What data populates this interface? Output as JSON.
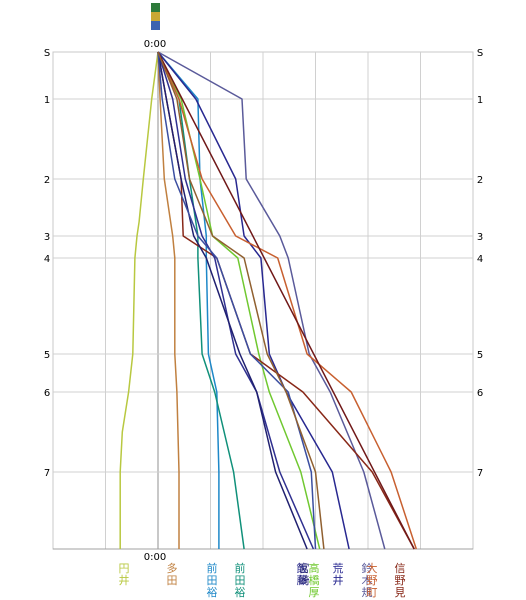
{
  "chart_data": {
    "type": "line",
    "title": "",
    "xlabel": "",
    "ylabel": "",
    "time_label_top": "0:00",
    "time_label_bottom": "0:00",
    "y_ticks": [
      "S",
      "1",
      "2",
      "3",
      "4",
      "5",
      "6",
      "7"
    ],
    "y_axis": {
      "scale": "ordinal",
      "min": 0,
      "max": 8
    },
    "x_axis": {
      "unit": "relative time",
      "min": -5,
      "max": 15
    },
    "grid": "vertical and horizontal",
    "header_icon": "legend-colour-block",
    "series": [
      {
        "name": "円井",
        "color": "#b8c840",
        "points": [
          [
            0,
            0
          ],
          [
            -0.3,
            1
          ],
          [
            -0.7,
            2
          ],
          [
            -0.9,
            2.75
          ],
          [
            -1,
            3
          ],
          [
            -1.1,
            4
          ],
          [
            -1.2,
            5
          ],
          [
            -1.4,
            6
          ],
          [
            -1.7,
            6.5
          ],
          [
            -1.8,
            7
          ],
          [
            -1.8,
            8
          ]
        ]
      },
      {
        "name": "多田",
        "color": "#c08040",
        "points": [
          [
            0,
            0
          ],
          [
            0.1,
            1
          ],
          [
            0.3,
            2
          ],
          [
            0.7,
            3
          ],
          [
            0.8,
            4
          ],
          [
            0.8,
            5
          ],
          [
            0.9,
            6
          ],
          [
            1,
            7
          ],
          [
            1,
            8
          ]
        ]
      },
      {
        "name": "前田裕",
        "color": "#1e88c8",
        "points": [
          [
            0,
            0
          ],
          [
            1.9,
            1
          ],
          [
            2,
            2
          ],
          [
            2.3,
            3
          ],
          [
            2.3,
            4
          ],
          [
            2.4,
            5
          ],
          [
            2.8,
            6
          ],
          [
            2.9,
            7
          ],
          [
            2.9,
            8
          ]
        ]
      },
      {
        "name": "前田裕",
        "color": "#10907a",
        "points": [
          [
            0,
            0
          ],
          [
            1,
            1
          ],
          [
            1.5,
            2
          ],
          [
            1.9,
            3
          ],
          [
            1.9,
            4
          ],
          [
            2.1,
            5
          ],
          [
            2.7,
            6
          ],
          [
            3.6,
            7
          ],
          [
            4.1,
            8
          ]
        ]
      },
      {
        "name": "高橋厚",
        "color": "#70c830",
        "points": [
          [
            0,
            0
          ],
          [
            1.1,
            1
          ],
          [
            2,
            2
          ],
          [
            2.6,
            3
          ],
          [
            3.8,
            4
          ],
          [
            4.8,
            5
          ],
          [
            5.3,
            6
          ],
          [
            6.8,
            7
          ],
          [
            7.7,
            8
          ]
        ]
      },
      {
        "name": "荒井",
        "color": "#282890",
        "points": [
          [
            0,
            0
          ],
          [
            1.8,
            1
          ],
          [
            3.7,
            2
          ],
          [
            4.1,
            3
          ],
          [
            4.9,
            4
          ],
          [
            5.3,
            5
          ],
          [
            6.1,
            6
          ],
          [
            8.3,
            7
          ],
          [
            9.1,
            8
          ]
        ]
      },
      {
        "name": "鈴木規",
        "color": "#5a5a9a",
        "points": [
          [
            0,
            0
          ],
          [
            4,
            1
          ],
          [
            4.2,
            2
          ],
          [
            5.8,
            3
          ],
          [
            6.2,
            4
          ],
          [
            7.2,
            5
          ],
          [
            8.2,
            6
          ],
          [
            9.8,
            7
          ],
          [
            10.8,
            8
          ]
        ]
      },
      {
        "name": "大野町",
        "color": "#c86030",
        "points": [
          [
            0,
            0
          ],
          [
            1,
            1
          ],
          [
            2.1,
            2
          ],
          [
            3.7,
            3
          ],
          [
            5.7,
            4
          ],
          [
            7.1,
            5
          ],
          [
            9.2,
            6
          ],
          [
            11.1,
            7
          ],
          [
            12.3,
            8
          ]
        ]
      },
      {
        "name": "信野見",
        "color": "#882818",
        "points": [
          [
            0,
            0
          ],
          [
            0.4,
            1
          ],
          [
            1.1,
            2
          ],
          [
            1.2,
            3
          ],
          [
            2.8,
            4
          ],
          [
            4.4,
            5
          ],
          [
            6.9,
            6
          ],
          [
            10.2,
            7
          ],
          [
            12.2,
            8
          ]
        ]
      },
      {
        "name": "飯藤",
        "color": "#303090",
        "points": [
          [
            0,
            0
          ],
          [
            0.7,
            1
          ],
          [
            1.3,
            2
          ],
          [
            2.1,
            3
          ],
          [
            2.7,
            4
          ],
          [
            3.7,
            5
          ],
          [
            4.7,
            6
          ],
          [
            5.8,
            7
          ],
          [
            7.4,
            8
          ]
        ]
      },
      {
        "name": "宮崎",
        "color": "#202070",
        "points": [
          [
            0,
            0
          ],
          [
            0.4,
            1
          ],
          [
            1.1,
            2
          ],
          [
            1.7,
            3
          ],
          [
            2.3,
            4
          ],
          [
            3.9,
            5
          ],
          [
            4.7,
            6
          ],
          [
            5.6,
            7
          ],
          [
            7.1,
            8
          ]
        ]
      },
      {
        "name": "",
        "color": "#3b4ea0",
        "points": [
          [
            0,
            0
          ],
          [
            0.2,
            1
          ],
          [
            0.8,
            2
          ],
          [
            1.9,
            3
          ],
          [
            2.8,
            4
          ],
          [
            4.4,
            5
          ],
          [
            6.2,
            6
          ],
          [
            7.3,
            7
          ],
          [
            7.5,
            8
          ]
        ]
      },
      {
        "name": "",
        "color": "#701818",
        "points": [
          [
            0,
            0
          ],
          [
            12.2,
            8
          ]
        ]
      },
      {
        "name": "",
        "color": "#906030",
        "points": [
          [
            0,
            0
          ],
          [
            0.9,
            1
          ],
          [
            1.5,
            2
          ],
          [
            2.6,
            3
          ],
          [
            4.1,
            4
          ],
          [
            5.2,
            5
          ],
          [
            6.1,
            6
          ],
          [
            7.5,
            7
          ],
          [
            7.9,
            8
          ]
        ]
      }
    ]
  },
  "runner_labels": [
    {
      "text": "円井",
      "color": "#b8c840"
    },
    {
      "text": "多田",
      "color": "#c08040"
    },
    {
      "text": "前田裕",
      "color": "#1e88c8"
    },
    {
      "text": "前田裕",
      "color": "#10907a"
    },
    {
      "text": "飯藤",
      "color": "#303090"
    },
    {
      "text": "宮崎",
      "color": "#202070"
    },
    {
      "text": "高橋厚",
      "color": "#70c830"
    },
    {
      "text": "荒井",
      "color": "#282890"
    },
    {
      "text": "鈴木規",
      "color": "#5a5a9a"
    },
    {
      "text": "大野町",
      "color": "#c86030"
    },
    {
      "text": "信野見",
      "color": "#882818"
    }
  ]
}
